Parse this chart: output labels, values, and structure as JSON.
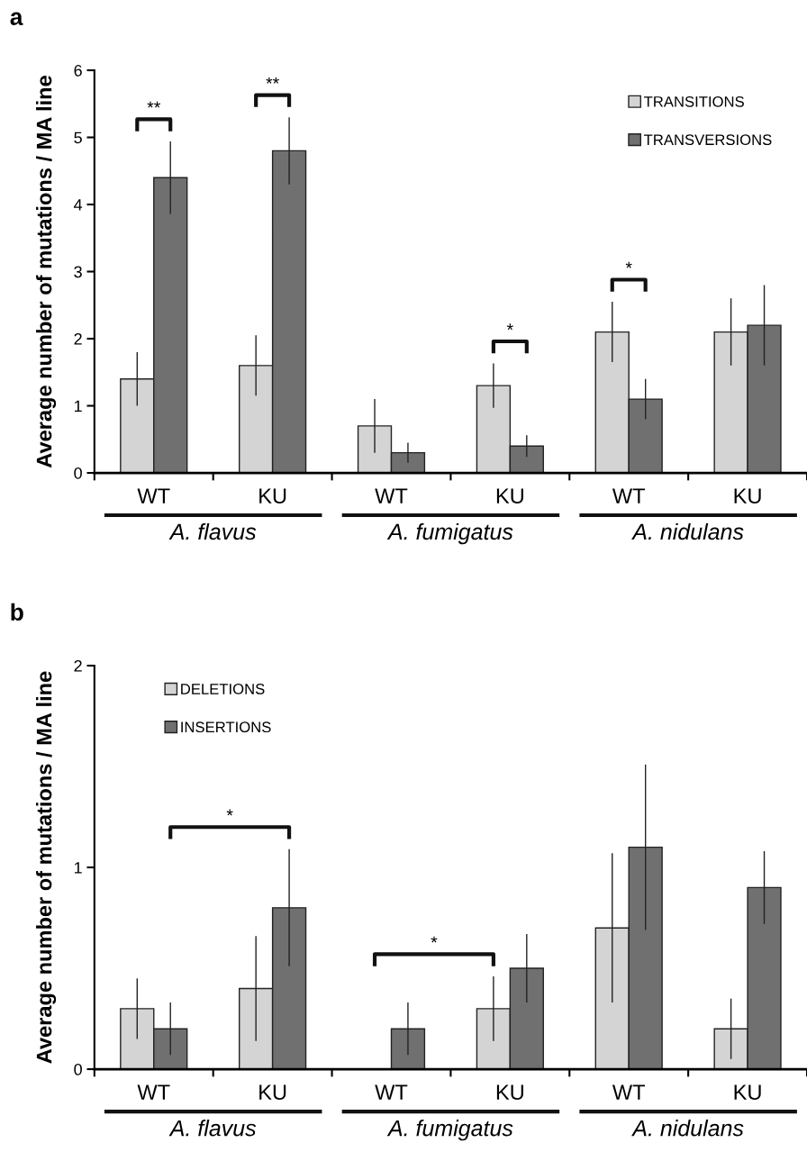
{
  "chart_data": [
    {
      "type": "bar",
      "title": "a",
      "ylabel": "Average number of mutations / MA line",
      "categories": [
        "WT",
        "KU",
        "WT",
        "KU",
        "WT",
        "KU"
      ],
      "series": [
        {
          "name": "TRANSITIONS",
          "color": "#d4d4d4",
          "values": [
            1.4,
            1.6,
            0.7,
            1.3,
            2.1,
            2.1
          ],
          "errors": [
            0.4,
            0.45,
            0.4,
            0.33,
            0.45,
            0.5
          ]
        },
        {
          "name": "TRANSVERSIONS",
          "color": "#707070",
          "values": [
            4.4,
            4.8,
            0.3,
            0.4,
            1.1,
            2.2
          ],
          "errors": [
            0.54,
            0.5,
            0.15,
            0.16,
            0.3,
            0.6
          ]
        }
      ],
      "ylim": [
        0,
        6
      ],
      "yticks": [
        0,
        1,
        2,
        3,
        4,
        5,
        6
      ],
      "grid": false,
      "legend": "top right",
      "annotations": [
        "**",
        "**",
        "*",
        "*",
        "A. flavus",
        "A. fumigatus",
        "A. nidulans"
      ]
    },
    {
      "type": "bar",
      "title": "b",
      "ylabel": "Average number of mutations / MA line",
      "categories": [
        "WT",
        "KU",
        "WT",
        "KU",
        "WT",
        "KU"
      ],
      "series": [
        {
          "name": "DELETIONS",
          "color": "#d4d4d4",
          "values": [
            0.3,
            0.4,
            null,
            0.3,
            0.7,
            0.2
          ],
          "errors": [
            0.15,
            0.26,
            null,
            0.16,
            0.37,
            0.15
          ]
        },
        {
          "name": "INSERTIONS",
          "color": "#707070",
          "values": [
            0.2,
            0.8,
            0.2,
            0.5,
            1.1,
            0.9
          ],
          "errors": [
            0.13,
            0.29,
            0.13,
            0.17,
            0.41,
            0.18
          ]
        }
      ],
      "ylim": [
        0,
        2
      ],
      "yticks": [
        0,
        1,
        2
      ],
      "grid": false,
      "legend": "top left",
      "annotations": [
        "*",
        "*",
        "A. flavus",
        "A. fumigatus",
        "A. nidulans"
      ]
    }
  ]
}
